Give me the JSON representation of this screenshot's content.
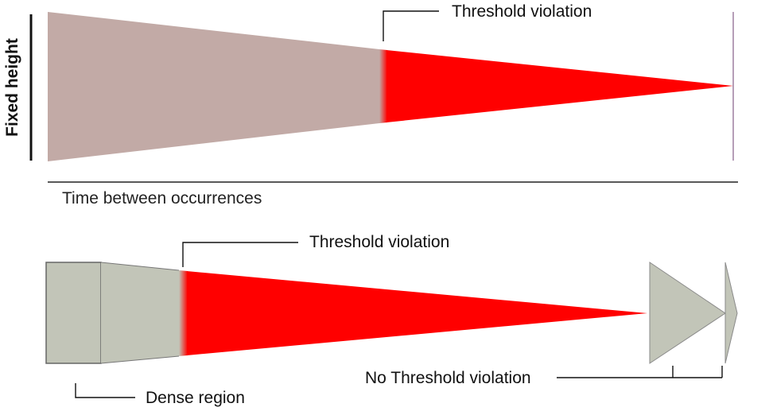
{
  "top_panel": {
    "y_axis_label": "Fixed height",
    "x_axis_label": "Time between occurrences",
    "callout_threshold": "Threshold violation"
  },
  "bottom_panel": {
    "callout_threshold": "Threshold violation",
    "callout_no_threshold": "No Threshold violation",
    "callout_dense": "Dense region"
  },
  "colors": {
    "normal_region_top": "#c2aaa6",
    "violation_region": "#ff0000",
    "normal_region_bottom": "#c2c5b8",
    "outline": "#666666"
  }
}
